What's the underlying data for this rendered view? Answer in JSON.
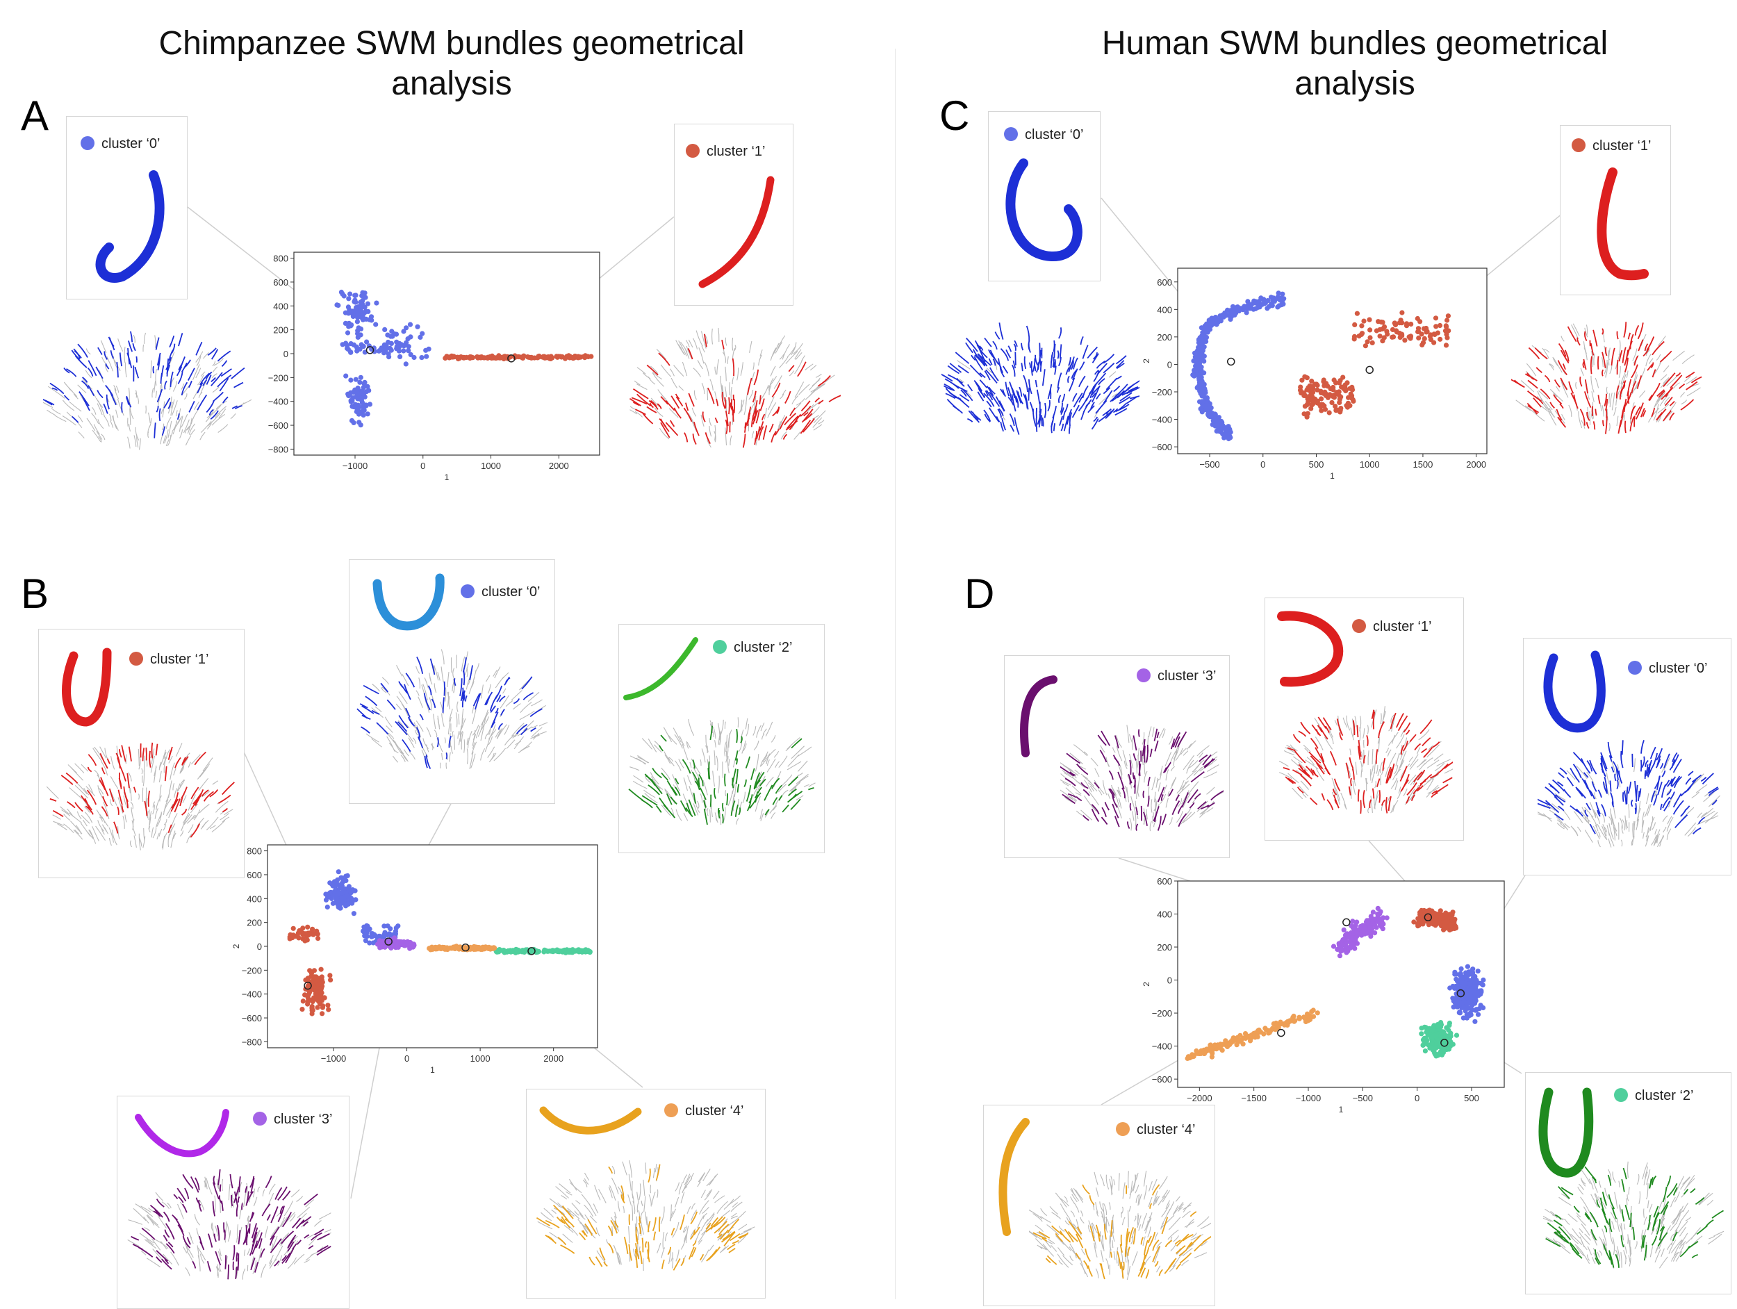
{
  "figure": {
    "title_left": "Chimpanzee SWM bundles geometrical\nanalysis",
    "title_right": "Human SWM bundles geometrical\nanalysis",
    "panel_letters": [
      "A",
      "B",
      "C",
      "D"
    ]
  },
  "colors": {
    "c0_marker": "#6270e8",
    "c1_marker": "#d35a42",
    "c2_marker": "#4fcf9c",
    "c3_marker": "#a463e6",
    "c4_marker": "#ee9f55",
    "blue_tube": "#1d2fd6",
    "red_tube": "#dd1f1f",
    "green_tube": "#1f8a1f",
    "purple_tube": "#6a0f6e",
    "orange_tube": "#e8a21e",
    "lightblue_tube": "#2c8fd9",
    "violet_tube": "#b028e8"
  },
  "legends": {
    "A0": "cluster ‘0’",
    "A1": "cluster ‘1’",
    "B0": "cluster ‘0’",
    "B1": "cluster ‘1’",
    "B2": "cluster ‘2’",
    "B3": "cluster ‘3’",
    "B4": "cluster ‘4’",
    "C0": "cluster ‘0’",
    "C1": "cluster ‘1’",
    "D0": "cluster ‘0’",
    "D1": "cluster ‘1’",
    "D2": "cluster ‘2’",
    "D3": "cluster ‘3’",
    "D4": "cluster ‘4’"
  },
  "chart_data": [
    {
      "id": "A",
      "type": "scatter",
      "title": "",
      "xlabel": "1",
      "ylabel": "",
      "xlim": [
        -1900,
        2600
      ],
      "ylim": [
        -850,
        850
      ],
      "xticks": [
        -1000,
        0,
        1000,
        2000
      ],
      "xtick_labels": [
        "−1000",
        "0",
        "1000",
        "2000"
      ],
      "yticks": [
        800,
        600,
        400,
        200,
        0,
        -200,
        -400,
        -600,
        -800
      ],
      "ytick_labels": [
        "800",
        "600",
        "400",
        "200",
        "0",
        "−200",
        "−400",
        "−600",
        "−800"
      ],
      "series": [
        {
          "name": "cluster 0",
          "color": "#6270e8",
          "shape": "chimp0"
        },
        {
          "name": "cluster 1",
          "color": "#d35a42",
          "shape": "tail",
          "x_range": [
            300,
            2500
          ],
          "y_center": -30
        }
      ],
      "centroids": [
        [
          -780,
          30
        ],
        [
          1300,
          -40
        ]
      ]
    },
    {
      "id": "B",
      "type": "scatter",
      "title": "",
      "xlabel": "1",
      "ylabel": "2",
      "xlim": [
        -1900,
        2600
      ],
      "ylim": [
        -850,
        850
      ],
      "xticks": [
        -1000,
        0,
        1000,
        2000
      ],
      "xtick_labels": [
        "−1000",
        "0",
        "1000",
        "2000"
      ],
      "yticks": [
        800,
        600,
        400,
        200,
        0,
        -200,
        -400,
        -600,
        -800
      ],
      "ytick_labels": [
        "800",
        "600",
        "400",
        "200",
        "0",
        "−200",
        "−400",
        "−600",
        "−800"
      ],
      "series": [
        {
          "name": "cluster 0",
          "color": "#6270e8",
          "shape": "blueB"
        },
        {
          "name": "cluster 1",
          "color": "#d35a42",
          "shape": "redB"
        },
        {
          "name": "cluster 2",
          "color": "#4fcf9c",
          "shape": "tail",
          "x_range": [
            1200,
            2500
          ],
          "y_center": -40
        },
        {
          "name": "cluster 3",
          "color": "#a463e6",
          "shape": "purpleB"
        },
        {
          "name": "cluster 4",
          "color": "#ee9f55",
          "shape": "tail",
          "x_range": [
            300,
            1200
          ],
          "y_center": -15
        }
      ],
      "centroids": [
        [
          -1350,
          -330
        ],
        [
          -250,
          40
        ],
        [
          800,
          -10
        ],
        [
          1700,
          -40
        ]
      ]
    },
    {
      "id": "C",
      "type": "scatter",
      "title": "",
      "xlabel": "1",
      "ylabel": "2",
      "xlim": [
        -800,
        2100
      ],
      "ylim": [
        -650,
        700
      ],
      "xticks": [
        -500,
        0,
        500,
        1000,
        1500,
        2000
      ],
      "xtick_labels": [
        "−500",
        "0",
        "500",
        "1000",
        "1500",
        "2000"
      ],
      "yticks": [
        600,
        400,
        200,
        0,
        -200,
        -400,
        -600
      ],
      "ytick_labels": [
        "600",
        "400",
        "200",
        "0",
        "−200",
        "−400",
        "−600"
      ],
      "series": [
        {
          "name": "cluster 0",
          "color": "#6270e8",
          "shape": "arcC0"
        },
        {
          "name": "cluster 1",
          "color": "#d35a42",
          "shape": "arcC1"
        }
      ],
      "centroids": [
        [
          -300,
          20
        ],
        [
          1000,
          -40
        ]
      ]
    },
    {
      "id": "D",
      "type": "scatter",
      "title": "",
      "xlabel": "1",
      "ylabel": "2",
      "xlim": [
        -2200,
        800
      ],
      "ylim": [
        -650,
        600
      ],
      "xticks": [
        -2000,
        -1500,
        -1000,
        -500,
        0,
        500
      ],
      "xtick_labels": [
        "−2000",
        "−1500",
        "−1000",
        "−500",
        "0",
        "500"
      ],
      "yticks": [
        600,
        400,
        200,
        0,
        -200,
        -400,
        -600
      ],
      "ytick_labels": [
        "600",
        "400",
        "200",
        "0",
        "−200",
        "−400",
        "−600"
      ],
      "series": [
        {
          "name": "cluster 0",
          "color": "#6270e8",
          "shape": "D0"
        },
        {
          "name": "cluster 1",
          "color": "#d35a42",
          "shape": "D1"
        },
        {
          "name": "cluster 2",
          "color": "#4fcf9c",
          "shape": "D2"
        },
        {
          "name": "cluster 3",
          "color": "#a463e6",
          "shape": "D3"
        },
        {
          "name": "cluster 4",
          "color": "#ee9f55",
          "shape": "D4"
        }
      ],
      "centroids": [
        [
          -1250,
          -320
        ],
        [
          -650,
          350
        ],
        [
          100,
          380
        ],
        [
          400,
          -80
        ],
        [
          250,
          -380
        ]
      ]
    }
  ]
}
